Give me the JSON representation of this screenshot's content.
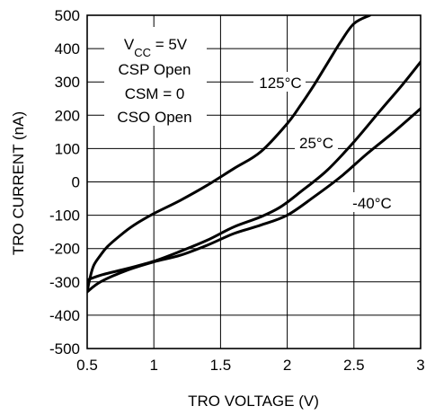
{
  "chart_data": {
    "type": "line",
    "title": "",
    "xlabel": "TRO VOLTAGE (V)",
    "ylabel": "TRO CURRENT (nA)",
    "xlim": [
      0.5,
      3
    ],
    "ylim": [
      -500,
      500
    ],
    "x_ticks": [
      "0.5",
      "1",
      "1.5",
      "2",
      "2.5",
      "3"
    ],
    "y_ticks": [
      "500",
      "400",
      "300",
      "200",
      "100",
      "0",
      "-100",
      "-200",
      "-300",
      "-400",
      "-500"
    ],
    "grid": true,
    "series": [
      {
        "name": "125°C",
        "x": [
          0.5,
          0.52,
          0.55,
          0.6,
          0.65,
          0.75,
          0.85,
          1.0,
          1.2,
          1.4,
          1.6,
          1.8,
          2.0,
          2.1,
          2.2,
          2.3,
          2.4,
          2.5,
          2.62
        ],
        "y": [
          -330,
          -290,
          -250,
          -220,
          -195,
          -160,
          -130,
          -95,
          -55,
          -10,
          40,
          90,
          175,
          230,
          290,
          355,
          420,
          475,
          500
        ]
      },
      {
        "name": "25°C",
        "x": [
          0.5,
          0.6,
          0.8,
          1.0,
          1.2,
          1.4,
          1.6,
          1.8,
          1.95,
          2.1,
          2.3,
          2.5,
          2.7,
          2.85,
          3.0
        ],
        "y": [
          -295,
          -280,
          -260,
          -238,
          -208,
          -175,
          -135,
          -105,
          -75,
          -30,
          35,
          120,
          215,
          285,
          360
        ]
      },
      {
        "name": "-40°C",
        "x": [
          0.5,
          0.6,
          0.8,
          1.0,
          1.2,
          1.4,
          1.6,
          1.8,
          2.0,
          2.2,
          2.4,
          2.6,
          2.8,
          3.0
        ],
        "y": [
          -330,
          -300,
          -265,
          -240,
          -220,
          -190,
          -155,
          -130,
          -100,
          -45,
          15,
          85,
          150,
          220
        ]
      }
    ],
    "annotations": {
      "conditions": [
        "V",
        "CC",
        " = 5V",
        "CSP Open",
        "CSM = 0",
        "CSO Open"
      ],
      "series_labels": [
        "125°C",
        "25°C",
        "-40°C"
      ]
    }
  }
}
